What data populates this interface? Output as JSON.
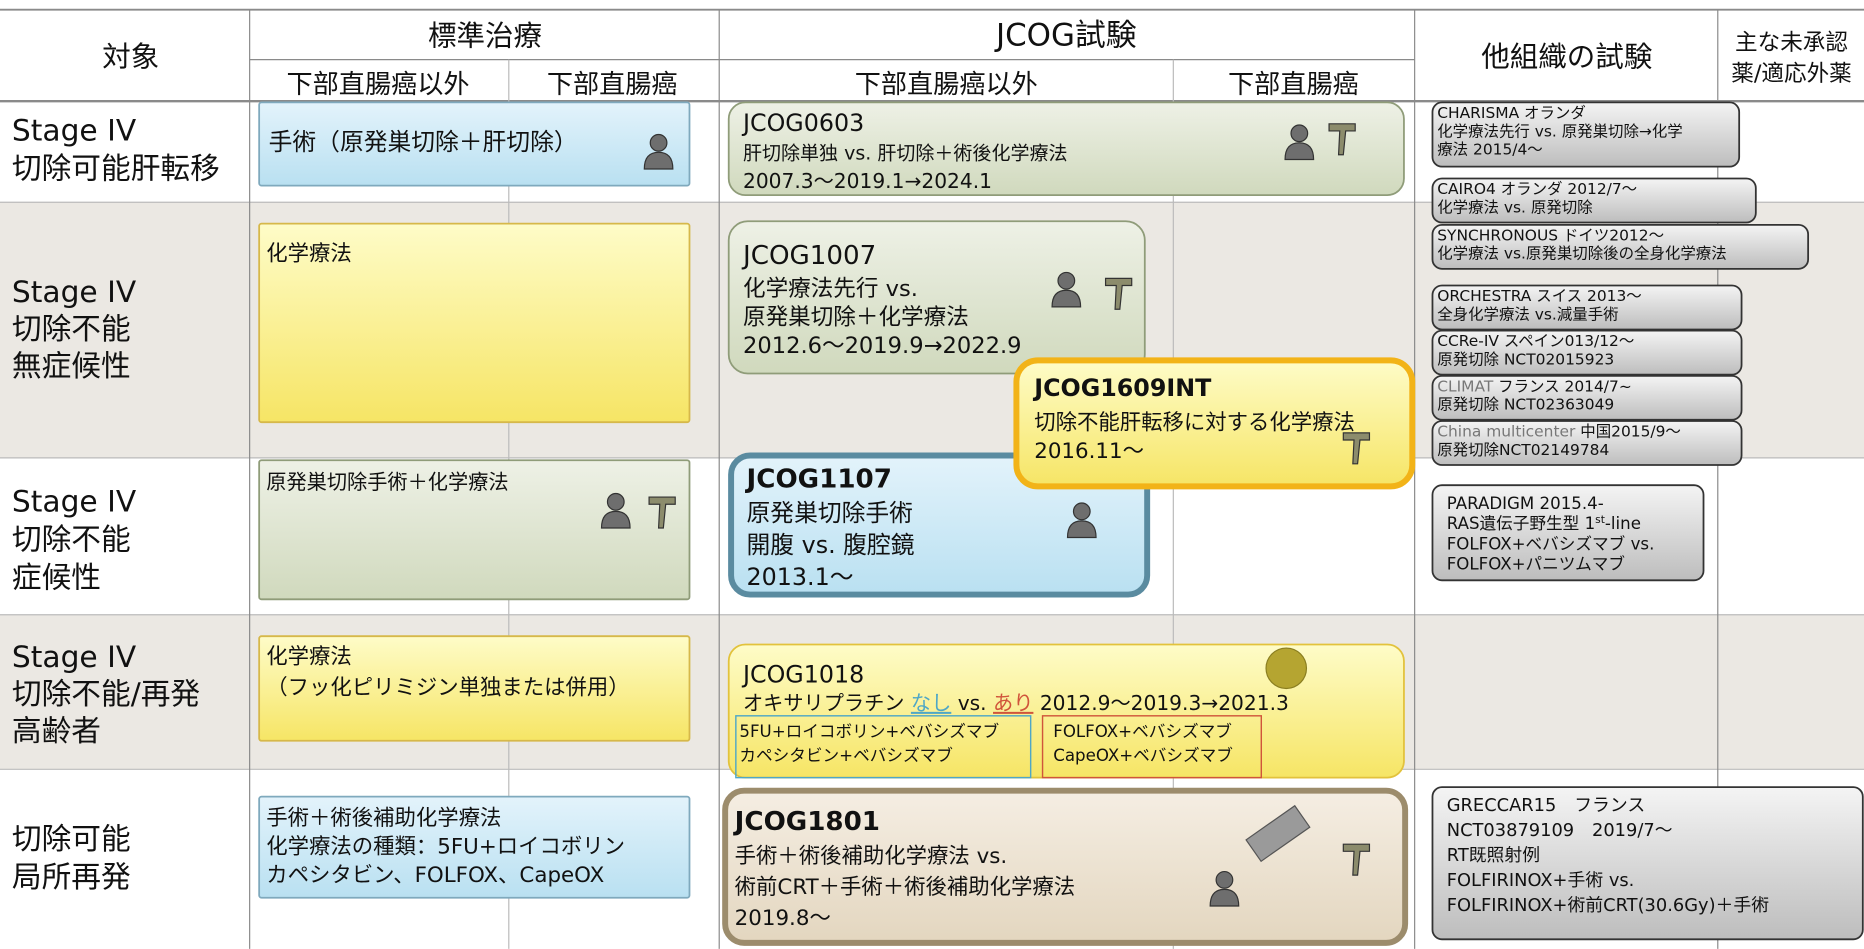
{
  "header": {
    "target": "対象",
    "standard": {
      "title": "標準治療",
      "sub": [
        "下部直腸癌以外",
        "下部直腸癌"
      ]
    },
    "jcog": {
      "title": "JCOG試験",
      "sub": [
        "下部直腸癌以外",
        "下部直腸癌"
      ]
    },
    "other": "他組織の試験",
    "unapproved": [
      "主な未承認",
      "薬/適応外薬"
    ]
  },
  "rows": [
    [
      "Stage IV",
      "切除可能肝転移"
    ],
    [
      "Stage IV",
      "切除不能",
      "無症候性"
    ],
    [
      "Stage IV",
      "切除不能",
      "症候性"
    ],
    [
      "Stage IV",
      "切除不能/再発",
      "高齢者"
    ],
    [
      "切除可能",
      "局所再発"
    ]
  ],
  "standard_boxes": [
    {
      "lines": [
        "手術（原発巣切除＋肝切除）"
      ]
    },
    {
      "lines": [
        "化学療法"
      ]
    },
    {
      "lines": [
        "原発巣切除手術＋化学療法"
      ]
    },
    {
      "lines": [
        "化学療法",
        "（フッ化ピリミジン単独または併用）"
      ]
    },
    {
      "lines": [
        "手術＋術後補助化学療法",
        "化学療法の種類：5FU+ロイコボリン",
        "カペシタビン、FOLFOX、CapeOX"
      ]
    }
  ],
  "jcog_boxes": [
    {
      "lines": [
        "JCOG0603",
        "肝切除単独 vs. 肝切除＋術後化学療法",
        "2007.3〜2019.1→2024.1"
      ]
    },
    {
      "lines": [
        "JCOG1007",
        "化学療法先行 vs.",
        "原発巣切除＋化学療法",
        "2012.6〜2019.9→2022.9"
      ]
    },
    {
      "lines": [
        "JCOG1609INT",
        "切除不能肝転移に対する化学療法",
        "2016.11〜"
      ]
    },
    {
      "lines": [
        "JCOG1107",
        "原発巣切除手術",
        "開腹 vs. 腹腔鏡",
        "2013.1〜"
      ]
    },
    {
      "lines": [
        "JCOG1018",
        {
          "parts": [
            "オキサリプラチン ",
            "なし",
            " vs. ",
            "あり",
            "   2012.9〜2019.3→2021.3"
          ]
        }
      ],
      "arms": [
        [
          "5FU+ロイコボリン+ベバシズマブ",
          "カペシタビン+ベバシズマブ"
        ],
        [
          "FOLFOX+ベバシズマブ",
          "CapeOX+ベバシズマブ"
        ]
      ]
    },
    {
      "lines": [
        "JCOG1801",
        "手術＋術後補助化学療法 vs.",
        "術前CRT＋手術＋術後補助化学療法",
        "2019.8〜"
      ]
    }
  ],
  "other_trials": [
    {
      "lines": [
        "CHARISMA オランダ",
        "化学療法先行 vs. 原発巣切除→化学",
        "療法 2015/4〜"
      ]
    },
    {
      "lines": [
        "CAIRO4 オランダ 2012/7〜",
        "化学療法 vs. 原発切除"
      ]
    },
    {
      "lines": [
        "SYNCHRONOUS ドイツ2012〜",
        "化学療法 vs.原発巣切除後の全身化学療法"
      ]
    },
    {
      "lines": [
        "ORCHESTRA スイス 2013〜",
        "全身化学療法 vs.減量手術"
      ]
    },
    {
      "lines": [
        "CCRe-IV スペイン013/12〜",
        "原発切除 NCT02015923"
      ]
    },
    {
      "lines": [
        {
          "parts": [
            "CLIMAT",
            " フランス 2014/7~"
          ]
        },
        "原発切除 NCT02363049"
      ]
    },
    {
      "lines": [
        {
          "parts": [
            "China multicenter",
            " 中国2015/9〜"
          ]
        },
        "原発切除NCT02149784"
      ]
    },
    {
      "lines": [
        "PARADIGM 2015.4-",
        {
          "parts": [
            "RAS遺伝子野生型 1",
            "st",
            "-line"
          ]
        },
        "FOLFOX+ベバシズマブ vs.",
        "FOLFOX+パニツムマブ"
      ]
    },
    {
      "lines": [
        "GRECCAR15　フランス",
        "NCT03879109　2019/7〜",
        "RT既照射例",
        "FOLFIRINOX+手術 vs.",
        "FOLFIRINOX+術前CRT(30.6Gy)＋手術"
      ]
    }
  ]
}
